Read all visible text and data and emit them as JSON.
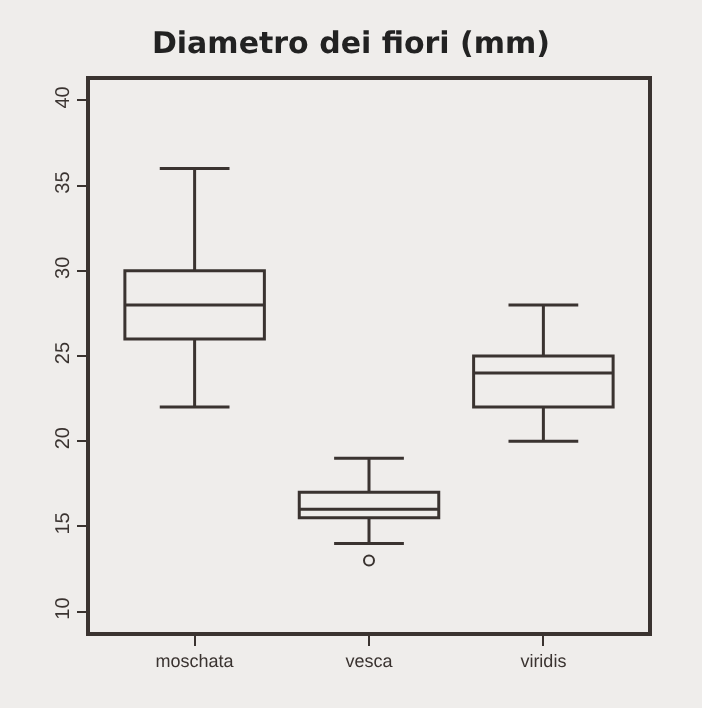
{
  "chart_data": {
    "type": "box",
    "title": "Diametro dei fiori (mm)",
    "categories": [
      "moschata",
      "vesca",
      "viridis"
    ],
    "boxes": [
      {
        "low": 22,
        "q1": 26,
        "median": 28,
        "q3": 30,
        "high": 36
      },
      {
        "low": 14,
        "q1": 15.5,
        "median": 16,
        "q3": 17,
        "high": 19,
        "outliers": [
          13
        ]
      },
      {
        "low": 20,
        "q1": 22,
        "median": 24,
        "q3": 25,
        "high": 28
      }
    ],
    "color": "#3a3330",
    "ylim": [
      8.8,
      41.2
    ],
    "yticks": [
      10,
      15,
      20,
      25,
      30,
      35,
      40
    ],
    "grid": false
  }
}
